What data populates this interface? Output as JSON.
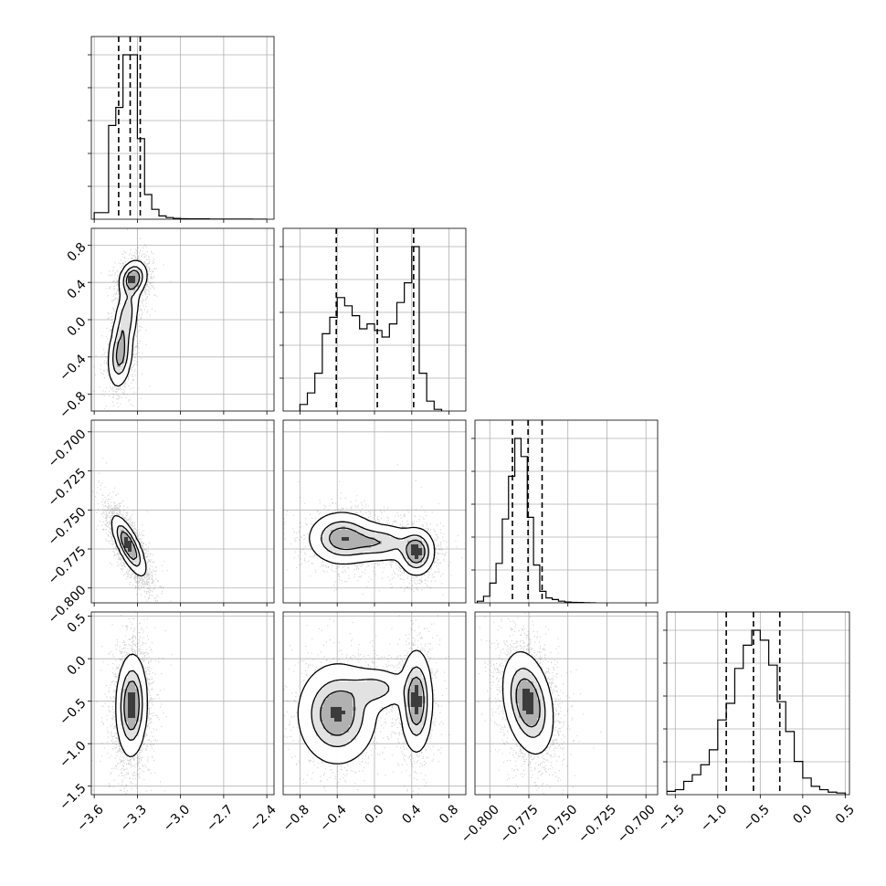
{
  "chart_data": {
    "type": "corner",
    "parameters": 4,
    "axes": [
      {
        "ticks": [
          -3.6,
          -3.3,
          -3.0,
          -2.7,
          -2.4
        ],
        "tick_labels": [
          "−3.6",
          "−3.3",
          "−3.0",
          "−2.7",
          "−2.4"
        ],
        "range": [
          -3.62,
          -2.35
        ]
      },
      {
        "ticks": [
          -0.8,
          -0.4,
          0.0,
          0.4,
          0.8
        ],
        "tick_labels": [
          "−0.8",
          "−0.4",
          "0.0",
          "0.4",
          "0.8"
        ],
        "range": [
          -0.98,
          0.98
        ]
      },
      {
        "ticks": [
          -0.8,
          -0.775,
          -0.75,
          -0.725,
          -0.7
        ],
        "tick_labels": [
          "−0.800",
          "−0.775",
          "−0.750",
          "−0.725",
          "−0.700"
        ],
        "range": [
          -0.8095,
          -0.6925
        ]
      },
      {
        "ticks": [
          -1.5,
          -1.0,
          -0.5,
          0.0,
          0.5
        ],
        "tick_labels": [
          "−1.5",
          "−1.0",
          "−0.5",
          "0.0",
          "0.5"
        ],
        "range": [
          -1.6,
          0.55
        ]
      }
    ],
    "marginals": [
      {
        "bin_edges": [
          -3.6,
          -3.5,
          -3.45,
          -3.4,
          -3.35,
          -3.3,
          -3.25,
          -3.2,
          -3.15,
          -3.1,
          -3.05,
          -3.0,
          -2.95,
          -2.9,
          -2.8,
          -2.7,
          -2.6,
          -2.5,
          -2.4
        ],
        "heights": [
          0.04,
          0.57,
          0.68,
          1.0,
          1.0,
          0.49,
          0.15,
          0.06,
          0.02,
          0.01,
          0.005,
          0.003,
          0.002,
          0.002,
          0.001,
          0.001,
          0.001,
          0.0
        ],
        "quantiles": [
          -3.43,
          -3.35,
          -3.28
        ]
      },
      {
        "bin_edges": [
          -0.8,
          -0.72,
          -0.64,
          -0.56,
          -0.48,
          -0.4,
          -0.32,
          -0.24,
          -0.16,
          -0.08,
          0.0,
          0.08,
          0.16,
          0.24,
          0.32,
          0.4,
          0.48,
          0.56,
          0.64,
          0.72
        ],
        "heights": [
          0.04,
          0.11,
          0.23,
          0.47,
          0.57,
          0.69,
          0.64,
          0.58,
          0.5,
          0.53,
          0.49,
          0.45,
          0.53,
          0.66,
          0.78,
          1.0,
          0.23,
          0.06,
          0.01
        ],
        "quantiles": [
          -0.41,
          0.03,
          0.42
        ]
      },
      {
        "bin_edges": [
          -0.808,
          -0.804,
          -0.8,
          -0.796,
          -0.792,
          -0.788,
          -0.784,
          -0.78,
          -0.776,
          -0.772,
          -0.768,
          -0.764,
          -0.76,
          -0.756,
          -0.752,
          -0.748,
          -0.744,
          -0.74,
          -0.736,
          -0.732
        ],
        "heights": [
          0.01,
          0.04,
          0.12,
          0.24,
          0.51,
          0.77,
          1.0,
          0.89,
          0.52,
          0.23,
          0.07,
          0.03,
          0.02,
          0.01,
          0.005,
          0.003,
          0.002,
          0.001,
          0.0
        ],
        "quantiles": [
          -0.7855,
          -0.7755,
          -0.7665
        ]
      },
      {
        "bin_edges": [
          -1.6,
          -1.5,
          -1.4,
          -1.3,
          -1.2,
          -1.1,
          -1.0,
          -0.9,
          -0.8,
          -0.7,
          -0.6,
          -0.5,
          -0.4,
          -0.3,
          -0.2,
          -0.1,
          0.0,
          0.1,
          0.2,
          0.3,
          0.4,
          0.5
        ],
        "heights": [
          0.02,
          0.03,
          0.08,
          0.12,
          0.18,
          0.27,
          0.45,
          0.55,
          0.76,
          0.9,
          0.99,
          0.93,
          0.78,
          0.56,
          0.38,
          0.2,
          0.1,
          0.05,
          0.03,
          0.015,
          0.01
        ],
        "quantiles": [
          -0.9,
          -0.58,
          -0.27
        ]
      }
    ],
    "joint": [
      {
        "x": 0,
        "y": 1,
        "modes": [
          {
            "mx": -3.33,
            "my": 0.44,
            "sx": 0.045,
            "sy": 0.09,
            "r": 0.2,
            "w": 0.5
          },
          {
            "mx": -3.42,
            "my": -0.4,
            "sx": 0.04,
            "sy": 0.16,
            "r": 0.2,
            "w": 0.35
          },
          {
            "mx": -3.38,
            "my": 0.0,
            "sx": 0.045,
            "sy": 0.22,
            "r": 0.5,
            "w": 0.3
          }
        ]
      },
      {
        "x": 0,
        "y": 2,
        "modes": [
          {
            "mx": -3.36,
            "my": -0.773,
            "sx": 0.055,
            "sy": 0.009,
            "r": -0.75,
            "w": 1.0
          }
        ]
      },
      {
        "x": 1,
        "y": 2,
        "modes": [
          {
            "mx": -0.35,
            "my": -0.768,
            "sx": 0.17,
            "sy": 0.008,
            "r": 0.0,
            "w": 0.5
          },
          {
            "mx": 0.45,
            "my": -0.777,
            "sx": 0.09,
            "sy": 0.007,
            "r": 0.0,
            "w": 0.6
          },
          {
            "mx": 0.05,
            "my": -0.771,
            "sx": 0.2,
            "sy": 0.006,
            "r": 0.0,
            "w": 0.35
          }
        ]
      },
      {
        "x": 0,
        "y": 3,
        "modes": [
          {
            "mx": -3.34,
            "my": -0.55,
            "sx": 0.05,
            "sy": 0.28,
            "r": 0.05,
            "w": 1.0
          }
        ]
      },
      {
        "x": 1,
        "y": 3,
        "modes": [
          {
            "mx": -0.4,
            "my": -0.65,
            "sx": 0.2,
            "sy": 0.28,
            "r": 0.0,
            "w": 0.5
          },
          {
            "mx": 0.45,
            "my": -0.5,
            "sx": 0.08,
            "sy": 0.28,
            "r": 0.0,
            "w": 0.55
          },
          {
            "mx": 0.02,
            "my": -0.35,
            "sx": 0.18,
            "sy": 0.12,
            "r": 0.0,
            "w": 0.25
          }
        ]
      },
      {
        "x": 2,
        "y": 3,
        "modes": [
          {
            "mx": -0.7755,
            "my": -0.52,
            "sx": 0.0075,
            "sy": 0.28,
            "r": -0.3,
            "w": 1.0
          }
        ]
      }
    ],
    "grid": true,
    "title": "",
    "xlabel": "",
    "ylabel": ""
  }
}
